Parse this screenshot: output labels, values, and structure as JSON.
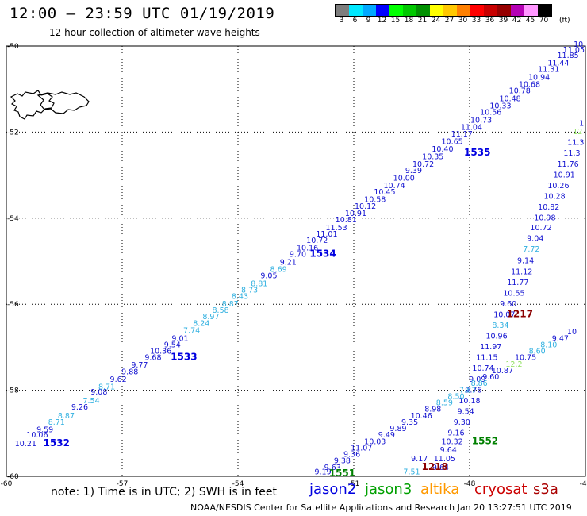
{
  "header": {
    "title": "12:00 – 23:59 UTC 01/19/2019",
    "subtitle": "12 hour collection of altimeter wave heights"
  },
  "color_scale": {
    "ticks": [
      "3",
      "6",
      "9",
      "12",
      "15",
      "18",
      "21",
      "24",
      "27",
      "30",
      "33",
      "36",
      "39",
      "42",
      "45",
      "70"
    ],
    "unit": "(ft)",
    "colors": [
      "#7d7d7d",
      "#00e8ff",
      "#00a8ff",
      "#0000ff",
      "#00ff00",
      "#00c800",
      "#009000",
      "#ffff00",
      "#ffc800",
      "#ff8000",
      "#ff0000",
      "#c80000",
      "#960000",
      "#b400b4",
      "#ff96ff",
      "#000000"
    ]
  },
  "chart_data": {
    "type": "scatter",
    "xlim": [
      -60,
      -45
    ],
    "ylim": [
      -60,
      -50
    ],
    "x_ticks": [
      "-60",
      "-57",
      "-54",
      "-51",
      "-48",
      "-45"
    ],
    "y_ticks": [
      "-50",
      "-52",
      "-54",
      "-56",
      "-58",
      "-60"
    ],
    "grid": true,
    "series": [
      {
        "name": "jason2",
        "color": "#0000e0",
        "pass": "1532",
        "pass_pos": [
          -58.7,
          -59.3
        ],
        "points": [
          [
            -59.5,
            -59.3,
            "10.21",
            "#1010d0"
          ],
          [
            -59.2,
            -59.1,
            "10.06",
            "#1010d0"
          ],
          [
            -59.0,
            -58.98,
            "9.59",
            "#1010d0"
          ],
          [
            -58.7,
            -58.8,
            "8.71",
            "#30b0e0"
          ],
          [
            -58.45,
            -58.65,
            "8.87",
            "#30b0e0"
          ],
          [
            -58.1,
            -58.45,
            "9.26",
            "#1010d0"
          ],
          [
            -57.8,
            -58.3,
            "7.54",
            "#30b0e0"
          ],
          [
            -57.6,
            -58.1,
            "9.08",
            "#1010d0"
          ],
          [
            -57.4,
            -57.98,
            "8.71",
            "#30b0e0"
          ],
          [
            -57.1,
            -57.8,
            "9.62",
            "#1010d0"
          ],
          [
            -56.8,
            -57.63,
            "9.88",
            "#1010d0"
          ],
          [
            -56.55,
            -57.47,
            "9.77",
            "#1010d0"
          ],
          [
            -56.2,
            -57.3,
            "9.68",
            "#1010d0"
          ],
          [
            -56.0,
            -57.15,
            "10.36",
            "#1010d0"
          ],
          [
            -55.7,
            -57.0,
            "9.54",
            "#1010d0"
          ],
          [
            -55.5,
            -56.85,
            "9.01",
            "#1010d0"
          ],
          [
            -55.2,
            -56.67,
            "7.74",
            "#30b0e0"
          ],
          [
            -54.95,
            -56.5,
            "8.24",
            "#30b0e0"
          ],
          [
            -54.7,
            -56.35,
            "8.97",
            "#30b0e0"
          ],
          [
            -54.45,
            -56.2,
            "8.58",
            "#30b0e0"
          ],
          [
            -54.2,
            -56.05,
            "8.87",
            "#30b0e0"
          ],
          [
            -53.95,
            -55.88,
            "8.43",
            "#30b0e0"
          ],
          [
            -53.7,
            -55.73,
            "8.73",
            "#30b0e0"
          ],
          [
            -53.45,
            -55.58,
            "8.81",
            "#30b0e0"
          ],
          [
            -53.2,
            -55.4,
            "9.05",
            "#1010d0"
          ],
          [
            -52.95,
            -55.25,
            "8.69",
            "#30b0e0"
          ],
          [
            -52.7,
            -55.08,
            "9.21",
            "#1010d0"
          ],
          [
            -52.45,
            -54.9,
            "9.70",
            "#1010d0"
          ]
        ]
      },
      {
        "name": "jason2b",
        "color": "#0000e0",
        "pass": "1534",
        "pass_pos": [
          -51.8,
          -54.9
        ],
        "points": [
          [
            -52.2,
            -54.75,
            "10.16",
            "#1010d0"
          ],
          [
            -51.95,
            -54.58,
            "10.72",
            "#1010d0"
          ],
          [
            -51.7,
            -54.43,
            "11.01",
            "#1010d0"
          ],
          [
            -51.45,
            -54.28,
            "11.53",
            "#1010d0"
          ],
          [
            -51.2,
            -54.1,
            "10.81",
            "#1010d0"
          ],
          [
            -50.95,
            -53.95,
            "10.91",
            "#1010d0"
          ],
          [
            -50.7,
            -53.78,
            "10.12",
            "#1010d0"
          ],
          [
            -50.45,
            -53.63,
            "10.58",
            "#1010d0"
          ],
          [
            -50.2,
            -53.45,
            "10.45",
            "#1010d0"
          ],
          [
            -49.95,
            -53.3,
            "10.74",
            "#1010d0"
          ],
          [
            -49.7,
            -53.13,
            "10.00",
            "#1010d0"
          ],
          [
            -49.45,
            -52.95,
            "9.39",
            "#1010d0"
          ],
          [
            -49.2,
            -52.8,
            "10.72",
            "#1010d0"
          ],
          [
            -48.95,
            -52.63,
            "10.35",
            "#1010d0"
          ],
          [
            -48.7,
            -52.45,
            "10.40",
            "#1010d0"
          ],
          [
            -48.45,
            -52.28,
            "10.65",
            "#1010d0"
          ],
          [
            -48.2,
            -52.1,
            "11.17",
            "#1010d0"
          ],
          [
            -47.95,
            -51.95,
            "11.04",
            "#1010d0"
          ],
          [
            -47.7,
            -51.78,
            "10.73",
            "#1010d0"
          ],
          [
            -47.45,
            -51.6,
            "10.56",
            "#1010d0"
          ],
          [
            -47.2,
            -51.45,
            "10.33",
            "#1010d0"
          ],
          [
            -46.95,
            -51.28,
            "10.48",
            "#1010d0"
          ],
          [
            -46.7,
            -51.1,
            "10.78",
            "#1010d0"
          ],
          [
            -46.45,
            -50.95,
            "10.68",
            "#1010d0"
          ],
          [
            -46.2,
            -50.78,
            "10.94",
            "#1010d0"
          ],
          [
            -45.95,
            -50.6,
            "11.31",
            "#1010d0"
          ],
          [
            -45.7,
            -50.45,
            "11.44",
            "#1010d0"
          ],
          [
            -45.45,
            -50.28,
            "11.85",
            "#1010d0"
          ],
          [
            -45.3,
            -50.15,
            "11.05",
            "#1010d0"
          ],
          [
            -45.15,
            -50.02,
            "10.",
            "#1010d0"
          ]
        ]
      },
      {
        "name": "jason2c",
        "color": "#0000e0",
        "pass": "1535",
        "pass_pos": [
          -47.8,
          -52.55
        ],
        "points": []
      },
      {
        "name": "jason2d",
        "color": "#0000e0",
        "pass": "1533",
        "pass_pos": [
          -55.4,
          -57.3
        ],
        "points": []
      },
      {
        "name": "jason2-desc",
        "color": "#1010d0",
        "points": [
          [
            -45.1,
            -51.85,
            "1",
            "#1010d0"
          ],
          [
            -45.2,
            -52.05,
            "12",
            "#90e060"
          ],
          [
            -45.25,
            -52.3,
            "11.3",
            "#1010d0"
          ],
          [
            -45.35,
            -52.55,
            "11.3",
            "#1010d0"
          ],
          [
            -45.45,
            -52.8,
            "11.76",
            "#1010d0"
          ],
          [
            -45.55,
            -53.05,
            "10.91",
            "#1010d0"
          ],
          [
            -45.7,
            -53.3,
            "10.26",
            "#1010d0"
          ],
          [
            -45.8,
            -53.55,
            "10.28",
            "#1010d0"
          ],
          [
            -45.95,
            -53.8,
            "10.82",
            "#1010d0"
          ],
          [
            -46.05,
            -54.05,
            "10.98",
            "#1010d0"
          ],
          [
            -46.15,
            -54.28,
            "10.72",
            "#1010d0"
          ],
          [
            -46.3,
            -54.53,
            "9.04",
            "#1010d0"
          ],
          [
            -46.4,
            -54.78,
            "7.72",
            "#30b0e0"
          ],
          [
            -46.55,
            -55.05,
            "9.14",
            "#1010d0"
          ],
          [
            -46.65,
            -55.3,
            "11.12",
            "#1010d0"
          ],
          [
            -46.75,
            -55.55,
            "11.77",
            "#1010d0"
          ],
          [
            -46.85,
            -55.8,
            "10.55",
            "#1010d0"
          ],
          [
            -47.0,
            -56.05,
            "9.60",
            "#1010d0"
          ],
          [
            -47.1,
            -56.3,
            "10.07",
            "#1010d0"
          ],
          [
            -47.2,
            -56.55,
            "8.34",
            "#30b0e0"
          ],
          [
            -47.3,
            -56.8,
            "10.96",
            "#1010d0"
          ],
          [
            -47.45,
            -57.05,
            "11.97",
            "#1010d0"
          ],
          [
            -47.55,
            -57.3,
            "11.15",
            "#1010d0"
          ],
          [
            -47.65,
            -57.55,
            "10.74",
            "#1010d0"
          ],
          [
            -47.8,
            -57.8,
            "9.09",
            "#1010d0"
          ],
          [
            -47.9,
            -58.05,
            "9.76",
            "#1010d0"
          ],
          [
            -48.0,
            -58.3,
            "10.18",
            "#1010d0"
          ],
          [
            -48.1,
            -58.55,
            "9.54",
            "#1010d0"
          ],
          [
            -48.2,
            -58.8,
            "9.30",
            "#1010d0"
          ],
          [
            -48.35,
            -59.05,
            "9.16",
            "#1010d0"
          ],
          [
            -48.45,
            -59.25,
            "10.32",
            "#1010d0"
          ],
          [
            -48.55,
            -59.45,
            "9.64",
            "#1010d0"
          ],
          [
            -48.65,
            -59.65,
            "11.05",
            "#1010d0"
          ],
          [
            -48.75,
            -59.85,
            "9.64",
            "#1010d0"
          ]
        ]
      },
      {
        "name": "jason3",
        "color": "#008000",
        "pass": "1552",
        "pass_pos": [
          -47.6,
          -59.25
        ],
        "points": [
          [
            -51.8,
            -59.95,
            "9.19",
            "#1010d0"
          ],
          [
            -51.55,
            -59.85,
            "9.63",
            "#1010d0"
          ],
          [
            -51.3,
            -59.7,
            "9.38",
            "#1010d0"
          ],
          [
            -51.05,
            -59.55,
            "9.36",
            "#1010d0"
          ],
          [
            -50.8,
            -59.4,
            "11.07",
            "#1010d0"
          ],
          [
            -50.45,
            -59.25,
            "10.03",
            "#1010d0"
          ],
          [
            -50.15,
            -59.1,
            "9.49",
            "#1010d0"
          ],
          [
            -49.85,
            -58.95,
            "9.89",
            "#1010d0"
          ],
          [
            -49.55,
            -58.8,
            "9.35",
            "#1010d0"
          ],
          [
            -49.25,
            -58.65,
            "10.46",
            "#1010d0"
          ],
          [
            -48.95,
            -58.5,
            "8.98",
            "#1010d0"
          ],
          [
            -48.65,
            -58.35,
            "8.59",
            "#30b0e0"
          ],
          [
            -48.35,
            -58.2,
            "8.50",
            "#30b0e0"
          ],
          [
            -48.05,
            -58.05,
            "7.87",
            "#30b0e0"
          ],
          [
            -47.75,
            -57.9,
            "8.86",
            "#30b0e0"
          ],
          [
            -47.45,
            -57.75,
            "9.60",
            "#1010d0"
          ],
          [
            -47.15,
            -57.6,
            "10.87",
            "#1010d0"
          ],
          [
            -46.85,
            -57.45,
            "12.2",
            "#90e060"
          ],
          [
            -46.55,
            -57.3,
            "10.75",
            "#1010d0"
          ],
          [
            -46.25,
            -57.15,
            "8.60",
            "#30b0e0"
          ],
          [
            -45.95,
            -57.0,
            "8.10",
            "#30b0e0"
          ],
          [
            -45.65,
            -56.85,
            "9.47",
            "#1010d0"
          ],
          [
            -45.35,
            -56.7,
            "10",
            "#1010d0"
          ]
        ]
      },
      {
        "name": "jason3b",
        "color": "#008000",
        "pass": "1551",
        "pass_pos": [
          -51.3,
          -60.0
        ],
        "points": []
      },
      {
        "name": "cryosat",
        "color": "#8b0000",
        "pass": "1217",
        "pass_pos": [
          -46.7,
          -56.3
        ],
        "points": []
      },
      {
        "name": "cryosat2",
        "color": "#8b0000",
        "pass": "1218",
        "pass_pos": [
          -48.9,
          -59.85
        ],
        "points": [
          [
            -49.5,
            -59.95,
            "7.51",
            "#30b0e0"
          ],
          [
            -49.3,
            -59.65,
            "9.17",
            "#1010d0"
          ]
        ]
      }
    ]
  },
  "legend": {
    "note": "note: 1) Time is in UTC; 2) SWH is in feet",
    "missions": [
      {
        "label": "jason2",
        "color": "#0000e0"
      },
      {
        "label": "jason3",
        "color": "#00a000"
      },
      {
        "label": "altika",
        "color": "#ff9900"
      },
      {
        "label": "cryosat",
        "color": "#cc0000"
      },
      {
        "label": "s3a",
        "color": "#aa0000"
      }
    ]
  },
  "footer": {
    "credit": "NOAA/NESDIS Center for Satellite Applications and Research    Jan 20 13:27:51 UTC 2019"
  }
}
